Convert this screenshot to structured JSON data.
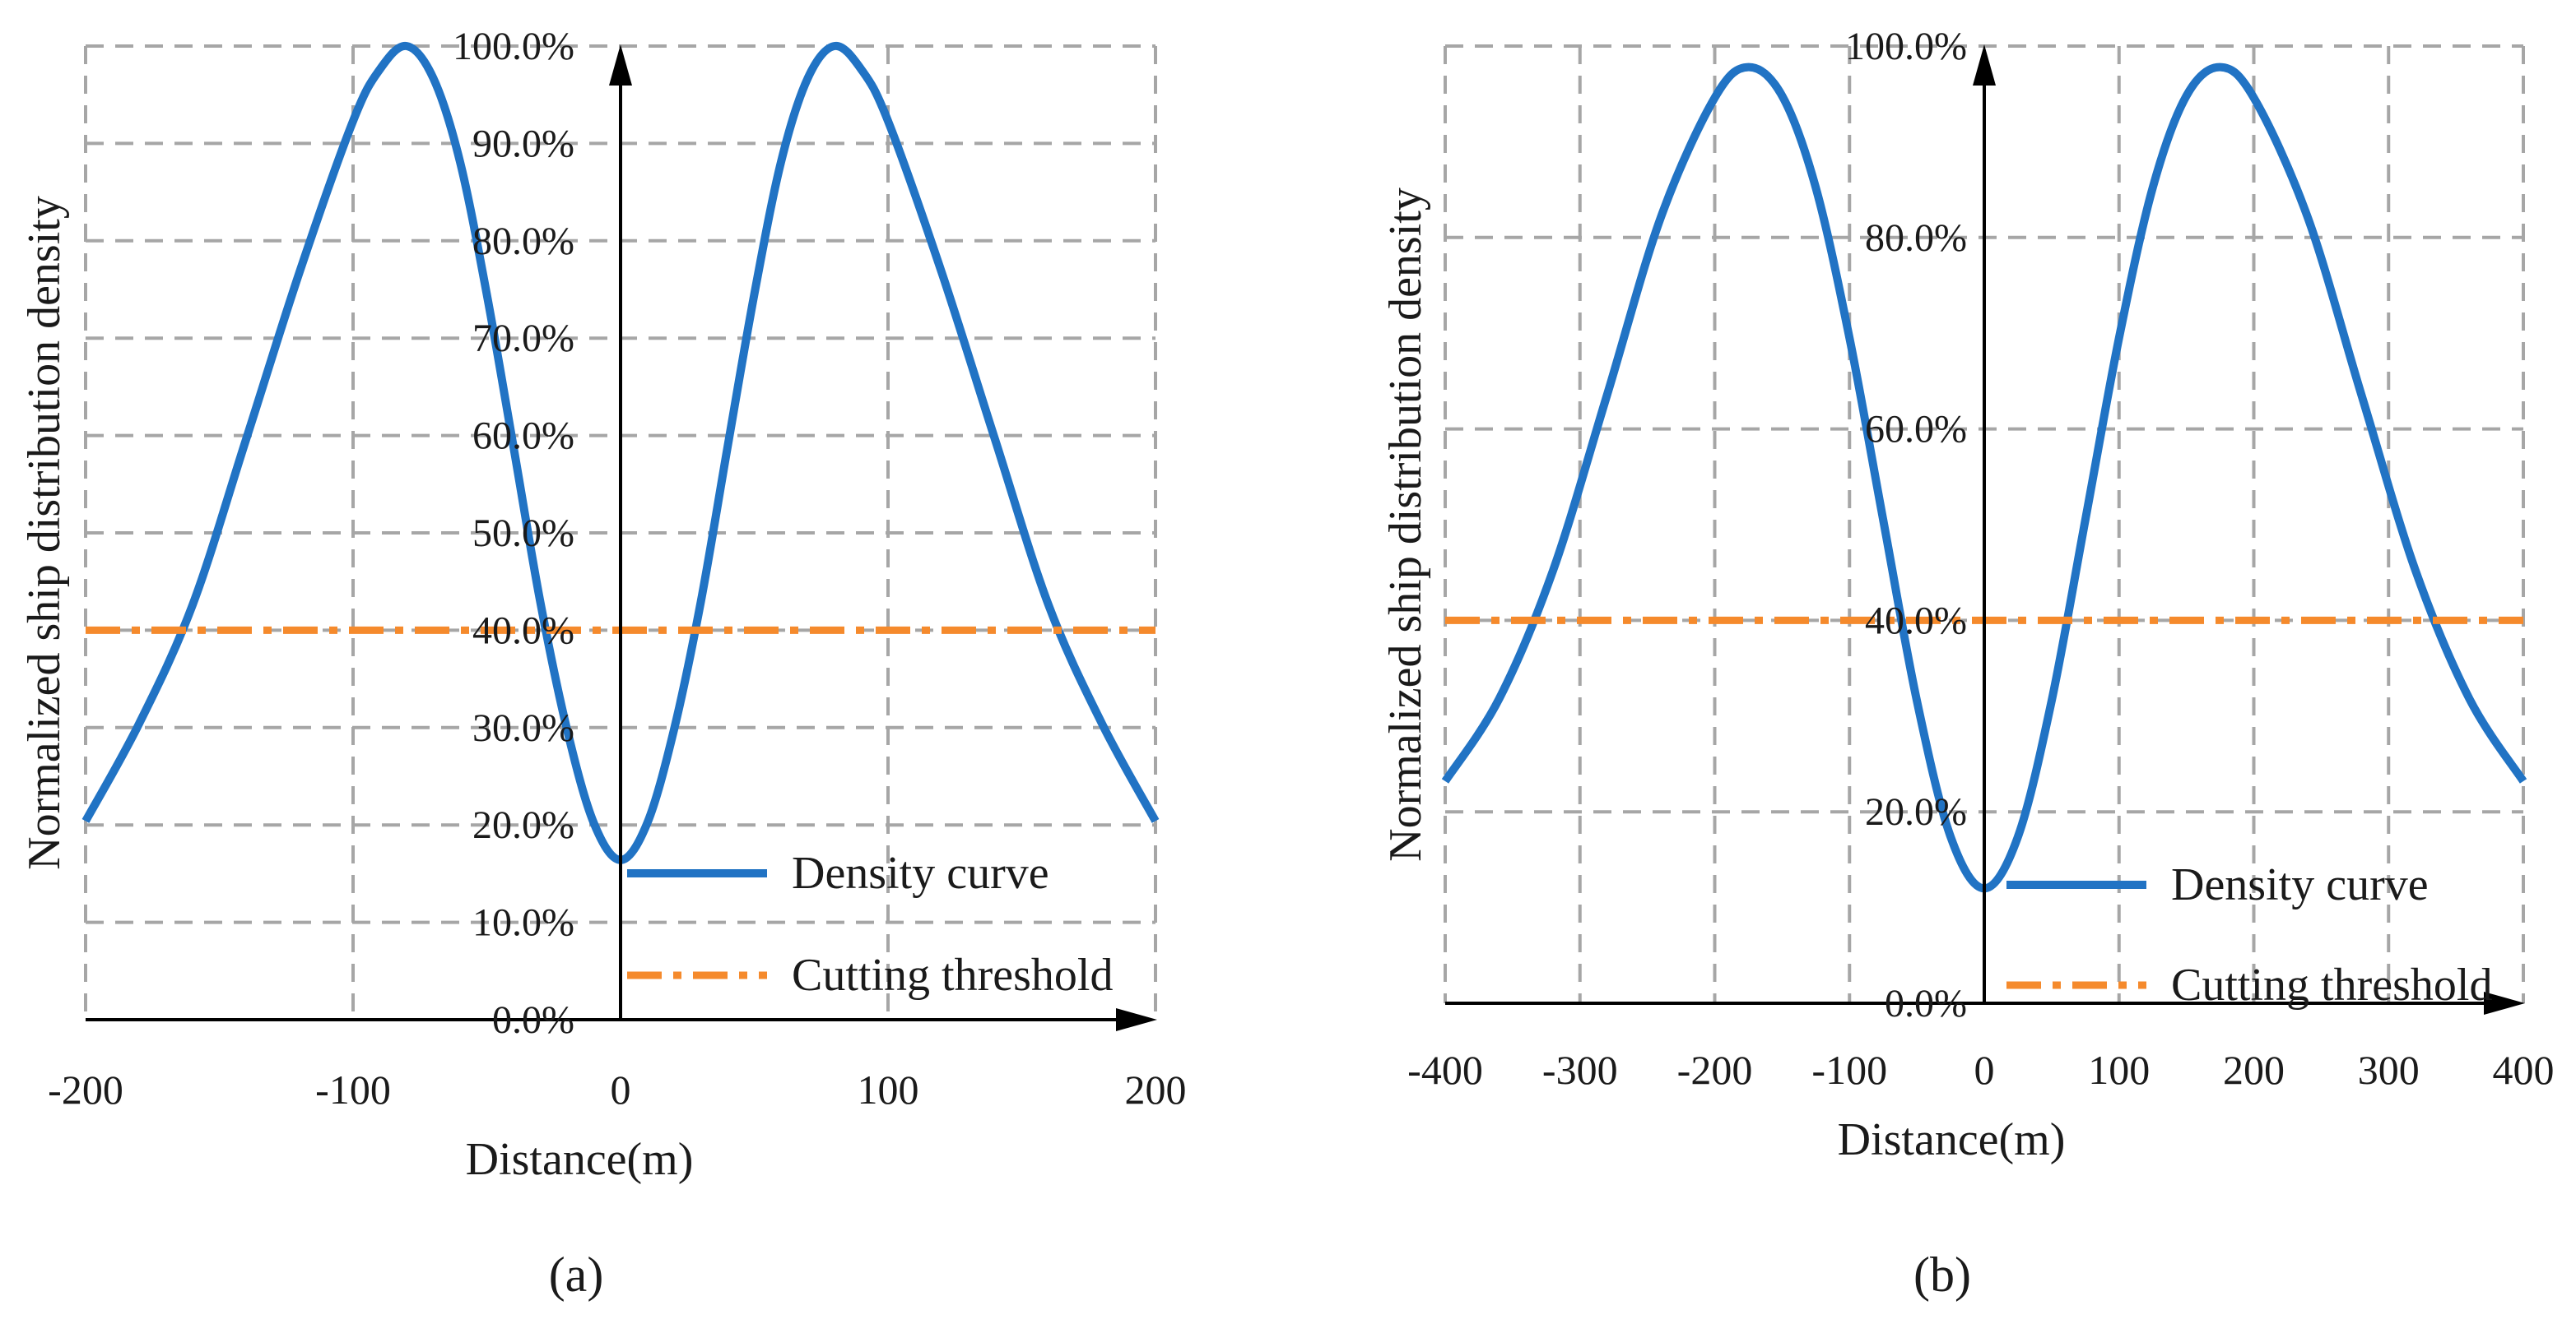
{
  "colors": {
    "density": "#2173c4",
    "threshold": "#f58a2c",
    "grid": "#a6a6a6",
    "axis": "#000000"
  },
  "chart_data": [
    {
      "type": "line",
      "panel_label": "(a)",
      "xlabel": "Distance(m)",
      "ylabel": "Normalized ship distribution density",
      "x_ticks": [
        -200,
        -100,
        0,
        100,
        200
      ],
      "x_tick_labels": [
        "-200",
        "-100",
        "0",
        "100",
        "200"
      ],
      "y_ticks": [
        0,
        10,
        20,
        30,
        40,
        50,
        60,
        70,
        80,
        90,
        100
      ],
      "y_tick_labels": [
        "0.0%",
        "10.0%",
        "20.0%",
        "30.0%",
        "40.0%",
        "50.0%",
        "60.0%",
        "70.0%",
        "80.0%",
        "90.0%",
        "100.0%"
      ],
      "xlim": [
        -200,
        200
      ],
      "ylim": [
        0,
        100
      ],
      "grid": true,
      "legend": [
        "Density curve",
        "Cutting threshold"
      ],
      "legend_position": "bottom-right",
      "series": [
        {
          "name": "Density curve",
          "style": "solid",
          "x": [
            -200,
            -180,
            -160,
            -140,
            -120,
            -100,
            -90,
            -80,
            -70,
            -60,
            -50,
            -40,
            -30,
            -20,
            -10,
            0,
            10,
            20,
            30,
            40,
            50,
            60,
            70,
            80,
            90,
            100,
            120,
            140,
            160,
            180,
            200
          ],
          "y": [
            20.4,
            30.4,
            42.6,
            59.6,
            76.8,
            92.3,
            97.6,
            100,
            96.7,
            88.1,
            74.5,
            58.8,
            42.9,
            29.8,
            20.2,
            16.4,
            20.2,
            29.8,
            42.9,
            58.8,
            74.5,
            88.1,
            96.7,
            100,
            97.6,
            92.3,
            76.8,
            59.6,
            42.6,
            30.4,
            20.4
          ]
        },
        {
          "name": "Cutting threshold",
          "style": "dash-dot",
          "x": [
            -200,
            200
          ],
          "y": [
            40,
            40
          ]
        }
      ]
    },
    {
      "type": "line",
      "panel_label": "(b)",
      "xlabel": "Distance(m)",
      "ylabel": "Normalized ship distribution density",
      "x_ticks": [
        -400,
        -300,
        -200,
        -100,
        0,
        100,
        200,
        300,
        400
      ],
      "x_tick_labels": [
        "-400",
        "-300",
        "-200",
        "-100",
        "0",
        "100",
        "200",
        "300",
        "400"
      ],
      "y_ticks": [
        0,
        20,
        40,
        60,
        80,
        100
      ],
      "y_tick_labels": [
        "0.0%",
        "20.0%",
        "40.0%",
        "60.0%",
        "80.0%",
        "100.0%"
      ],
      "xlim": [
        -400,
        400
      ],
      "ylim": [
        0,
        100
      ],
      "grid": true,
      "legend": [
        "Density curve",
        "Cutting threshold"
      ],
      "legend_position": "bottom-right",
      "series": [
        {
          "name": "Density curve",
          "style": "solid",
          "x": [
            -400,
            -360,
            -320,
            -280,
            -240,
            -200,
            -175,
            -150,
            -125,
            -100,
            -75,
            -50,
            -25,
            0,
            25,
            50,
            75,
            100,
            125,
            150,
            175,
            200,
            240,
            280,
            320,
            360,
            400
          ],
          "y": [
            23.2,
            31.8,
            45.2,
            63.5,
            82.1,
            94.6,
            97.8,
            94.8,
            85.2,
            69.5,
            50.5,
            31.6,
            17.4,
            12.0,
            17.4,
            31.6,
            50.5,
            69.5,
            85.2,
            94.8,
            97.8,
            94.6,
            82.1,
            63.5,
            45.2,
            31.8,
            23.2
          ]
        },
        {
          "name": "Cutting threshold",
          "style": "dash-dot",
          "x": [
            -400,
            400
          ],
          "y": [
            40,
            40
          ]
        }
      ]
    }
  ]
}
